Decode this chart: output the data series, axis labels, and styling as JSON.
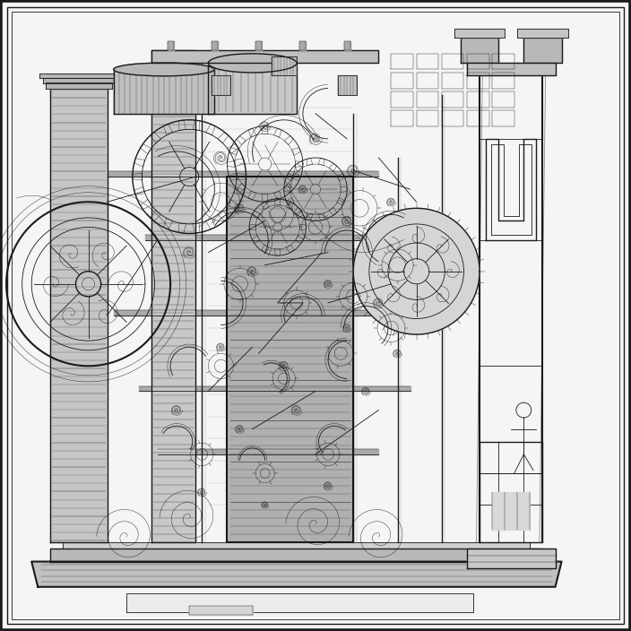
{
  "bg_color": "#f5f5f3",
  "line_color": "#1a1a1a",
  "mid_gray": "#888888",
  "light_gray": "#cccccc",
  "dark_gray": "#444444",
  "fig_width": 7.04,
  "fig_height": 7.04,
  "dpi": 100
}
